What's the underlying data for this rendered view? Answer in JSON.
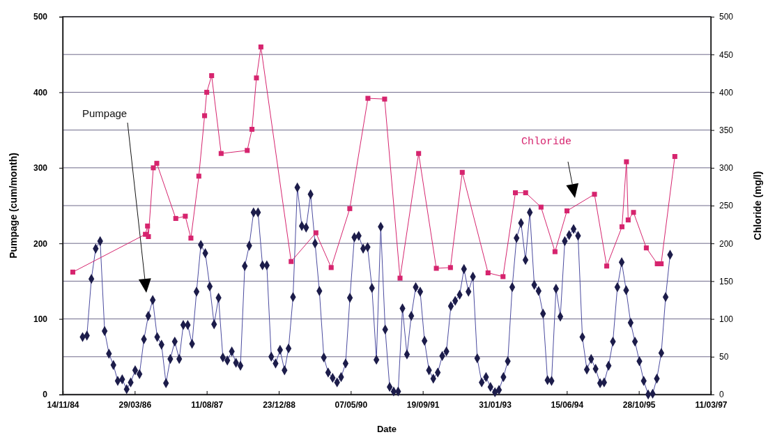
{
  "chart_data": {
    "type": "line",
    "xlabel": "Date",
    "ylabel": "Pumpage (cum/month)",
    "y2label": "Chloride (mg/l)",
    "xlim": [
      "1984-11-14",
      "1997-03-11"
    ],
    "xticks": [
      {
        "value": "1984-11-14",
        "label": "14/11/84"
      },
      {
        "value": "1986-03-29",
        "label": "29/03/86"
      },
      {
        "value": "1987-08-11",
        "label": "11/08/87"
      },
      {
        "value": "1988-12-23",
        "label": "23/12/88"
      },
      {
        "value": "1990-05-07",
        "label": "07/05/90"
      },
      {
        "value": "1991-09-19",
        "label": "19/09/91"
      },
      {
        "value": "1993-01-31",
        "label": "31/01/93"
      },
      {
        "value": "1994-06-15",
        "label": "15/06/94"
      },
      {
        "value": "1995-10-28",
        "label": "28/10/95"
      },
      {
        "value": "1997-03-11",
        "label": "11/03/97"
      }
    ],
    "ylim": [
      0,
      500
    ],
    "yticks": [
      0,
      100,
      200,
      300,
      400,
      500
    ],
    "y2lim": [
      0,
      500
    ],
    "y2ticks": [
      0,
      50,
      100,
      150,
      200,
      250,
      300,
      350,
      400,
      450,
      500
    ],
    "grid": "y",
    "legend": false,
    "series": [
      {
        "name": "Pumpage",
        "color": "#1c1c4a",
        "marker": "diamond",
        "x": [
          "1985-04",
          "1985-05",
          "1985-06",
          "1985-07",
          "1985-08",
          "1985-09",
          "1985-10",
          "1985-11",
          "1985-12",
          "1986-01",
          "1986-02",
          "1986-03",
          "1986-04",
          "1986-05",
          "1986-06",
          "1986-07",
          "1986-08",
          "1986-09",
          "1986-10",
          "1986-11",
          "1986-12",
          "1987-01",
          "1987-02",
          "1987-03",
          "1987-04",
          "1987-05",
          "1987-06",
          "1987-07",
          "1987-08",
          "1987-09",
          "1987-10",
          "1987-11",
          "1987-12",
          "1988-01",
          "1988-02",
          "1988-03",
          "1988-04",
          "1988-05",
          "1988-06",
          "1988-07",
          "1988-08",
          "1988-09",
          "1988-10",
          "1988-11",
          "1988-12",
          "1989-01",
          "1989-02",
          "1989-03",
          "1989-04",
          "1989-05",
          "1989-06",
          "1989-07",
          "1989-08",
          "1989-09",
          "1989-10",
          "1989-11",
          "1989-12",
          "1990-01",
          "1990-02",
          "1990-03",
          "1990-04",
          "1990-05",
          "1990-06",
          "1990-07",
          "1990-08",
          "1990-09",
          "1990-10",
          "1990-11",
          "1990-12",
          "1991-01",
          "1991-02",
          "1991-03",
          "1991-04",
          "1991-05",
          "1991-06",
          "1991-07",
          "1991-08",
          "1991-09",
          "1991-10",
          "1991-11",
          "1991-12",
          "1992-01",
          "1992-02",
          "1992-03",
          "1992-04",
          "1992-05",
          "1992-06",
          "1992-07",
          "1992-08",
          "1992-09",
          "1992-10",
          "1992-11",
          "1992-12",
          "1993-01",
          "1993-02",
          "1993-03",
          "1993-04",
          "1993-05",
          "1993-06",
          "1993-07",
          "1993-08",
          "1993-09",
          "1993-10",
          "1993-11",
          "1993-12",
          "1994-01",
          "1994-02",
          "1994-03",
          "1994-04",
          "1994-05",
          "1994-06",
          "1994-07",
          "1994-08",
          "1994-09",
          "1994-10",
          "1994-11",
          "1994-12",
          "1995-01",
          "1995-02",
          "1995-03",
          "1995-04",
          "1995-05",
          "1995-06",
          "1995-07",
          "1995-08",
          "1995-09",
          "1995-10",
          "1995-11",
          "1995-12",
          "1996-01",
          "1996-02",
          "1996-03",
          "1996-04",
          "1996-05",
          "1996-06"
        ],
        "values": [
          76,
          78,
          153,
          193,
          203,
          84,
          54,
          39,
          18,
          20,
          7,
          16,
          32,
          27,
          73,
          104,
          125,
          76,
          66,
          15,
          47,
          70,
          47,
          92,
          92,
          67,
          136,
          198,
          187,
          143,
          93,
          128,
          49,
          45,
          57,
          42,
          38,
          170,
          197,
          241,
          241,
          171,
          171,
          50,
          41,
          59,
          32,
          61,
          129,
          274,
          223,
          221,
          265,
          200,
          137,
          49,
          29,
          22,
          16,
          23,
          41,
          128,
          208,
          210,
          193,
          195,
          141,
          46,
          222,
          86,
          10,
          4,
          4,
          114,
          53,
          104,
          142,
          136,
          71,
          32,
          21,
          29,
          51,
          57,
          117,
          124,
          132,
          166,
          136,
          156,
          48,
          16,
          23,
          10,
          3,
          6,
          23,
          44,
          142,
          207,
          227,
          178,
          241,
          145,
          137,
          107,
          19,
          18,
          140,
          103,
          203,
          211,
          219,
          210,
          76,
          33,
          47,
          34,
          15,
          16,
          38,
          70,
          142,
          175,
          138,
          95,
          70,
          44,
          18,
          0,
          1,
          21,
          55,
          129,
          185
        ]
      },
      {
        "name": "Chloride",
        "color": "#d6246e",
        "marker": "square",
        "x": [
          "1985-01-23",
          "1986-06-11",
          "1986-06-26",
          "1986-07-02",
          "1986-08-05",
          "1986-08-29",
          "1987-01-08",
          "1987-03-15",
          "1987-04-23",
          "1987-06-17",
          "1987-07-27",
          "1987-08-11",
          "1987-09-14",
          "1987-11-19",
          "1988-05-18",
          "1988-06-20",
          "1988-07-21",
          "1988-08-21",
          "1989-03-19",
          "1989-09-07",
          "1989-12-22",
          "1990-04-30",
          "1990-09-03",
          "1990-12-28",
          "1991-04-14",
          "1991-08-21",
          "1991-12-22",
          "1992-03-29",
          "1992-06-19",
          "1992-12-15",
          "1993-03-29",
          "1993-06-23",
          "1993-09-02",
          "1993-12-18",
          "1994-03-25",
          "1994-06-16",
          "1994-12-24",
          "1995-03-19",
          "1995-07-03",
          "1995-08-03",
          "1995-08-15",
          "1995-09-21",
          "1995-12-19",
          "1996-03-04",
          "1996-03-31",
          "1996-07-04"
        ],
        "values": [
          162,
          212,
          223,
          209,
          300,
          306,
          233,
          236,
          207,
          289,
          369,
          400,
          422,
          319,
          323,
          351,
          419,
          460,
          176,
          214,
          168,
          246,
          392,
          391,
          154,
          319,
          167,
          168,
          294,
          161,
          156,
          267,
          267,
          248,
          189,
          243,
          265,
          170,
          222,
          308,
          231,
          241,
          194,
          173,
          173,
          315
        ]
      }
    ]
  }
}
